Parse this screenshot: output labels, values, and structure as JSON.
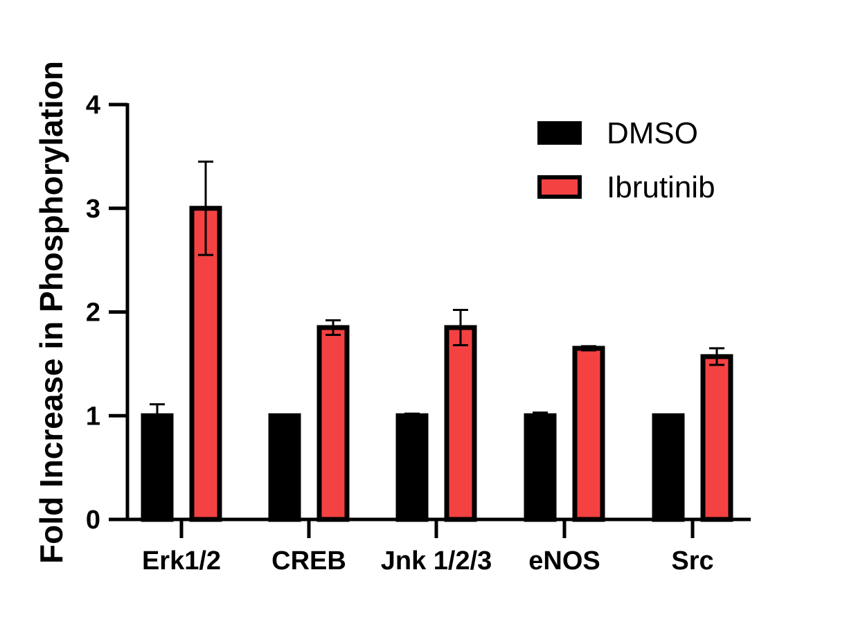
{
  "chart_data": {
    "type": "bar",
    "categories": [
      "Erk1/2",
      "CREB",
      "Jnk 1/2/3",
      "eNOS",
      "Src"
    ],
    "series": [
      {
        "name": "DMSO",
        "color": "#000000",
        "values": [
          1.0,
          1.0,
          1.0,
          1.0,
          1.0
        ],
        "errors": [
          0.11,
          0.01,
          0.02,
          0.03,
          0.01
        ]
      },
      {
        "name": "Ibrutinib",
        "color": "#f44242",
        "values": [
          3.0,
          1.85,
          1.85,
          1.65,
          1.57
        ],
        "errors": [
          0.45,
          0.07,
          0.17,
          0.02,
          0.08
        ]
      }
    ],
    "title": "",
    "xlabel": "",
    "ylabel": "Fold  Increase in  Phosphorylation",
    "ylim": [
      0,
      4
    ],
    "yticks": [
      "0",
      "1",
      "2",
      "3",
      "4"
    ],
    "grid": false,
    "legend_position": "top-right"
  }
}
